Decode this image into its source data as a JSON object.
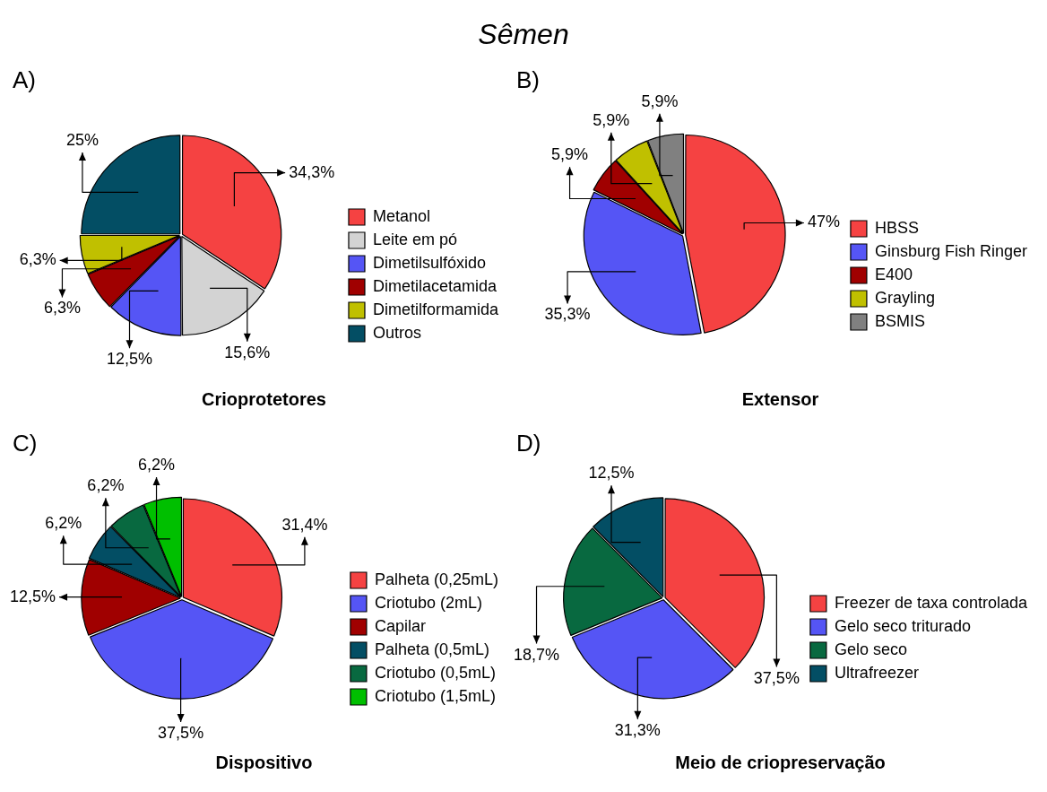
{
  "chart_data": [
    {
      "type": "pie",
      "title": "Crioprotetores",
      "categories": [
        "Metanol",
        "Leite em pó",
        "Dimetilsulfóxido",
        "Dimetilacetamida",
        "Dimetilformamida",
        "Outros"
      ],
      "values": [
        34.3,
        15.6,
        12.5,
        6.3,
        6.3,
        25
      ],
      "value_labels": [
        "34,3%",
        "15,6%",
        "12,5%",
        "6,3%",
        "6,3%",
        "25%"
      ],
      "colors": [
        "#f54242",
        "#d3d3d3",
        "#5555f5",
        "#a00000",
        "#c0c000",
        "#034e64"
      ],
      "legend": "right",
      "annotations": [
        "Sêmen",
        "A)"
      ]
    },
    {
      "type": "pie",
      "title": "Extensor",
      "categories": [
        "HBSS",
        "Ginsburg Fish Ringer",
        "E400",
        "Grayling",
        "BSMIS"
      ],
      "values": [
        47,
        35.3,
        5.9,
        5.9,
        5.9
      ],
      "value_labels": [
        "47%",
        "35,3%",
        "5,9%",
        "5,9%",
        "5,9%"
      ],
      "colors": [
        "#f54242",
        "#5555f5",
        "#a00000",
        "#c0c000",
        "#808080"
      ],
      "legend": "right",
      "annotations": [
        "B)"
      ]
    },
    {
      "type": "pie",
      "title": "Dispositivo",
      "categories": [
        "Palheta (0,25mL)",
        "Criotubo (2mL)",
        "Capilar",
        "Palheta (0,5mL)",
        "Criotubo (0,5mL)",
        "Criotubo (1,5mL)"
      ],
      "values": [
        31.4,
        37.5,
        12.5,
        6.2,
        6.2,
        6.2
      ],
      "value_labels": [
        "31,4%",
        "37,5%",
        "12,5%",
        "6,2%",
        "6,2%",
        "6,2%"
      ],
      "colors": [
        "#f54242",
        "#5555f5",
        "#a00000",
        "#034e64",
        "#086940",
        "#00bf00"
      ],
      "legend": "right",
      "annotations": [
        "C)"
      ]
    },
    {
      "type": "pie",
      "title": "Meio de criopreservação",
      "categories": [
        "Freezer de taxa controlada",
        "Gelo seco triturado",
        "Gelo seco",
        "Ultrafreezer"
      ],
      "values": [
        37.5,
        31.3,
        18.7,
        12.5
      ],
      "value_labels": [
        "37,5%",
        "31,3%",
        "18,7%",
        "12,5%"
      ],
      "colors": [
        "#f54242",
        "#5555f5",
        "#086940",
        "#034e64"
      ],
      "legend": "right",
      "annotations": [
        "D)"
      ]
    }
  ]
}
